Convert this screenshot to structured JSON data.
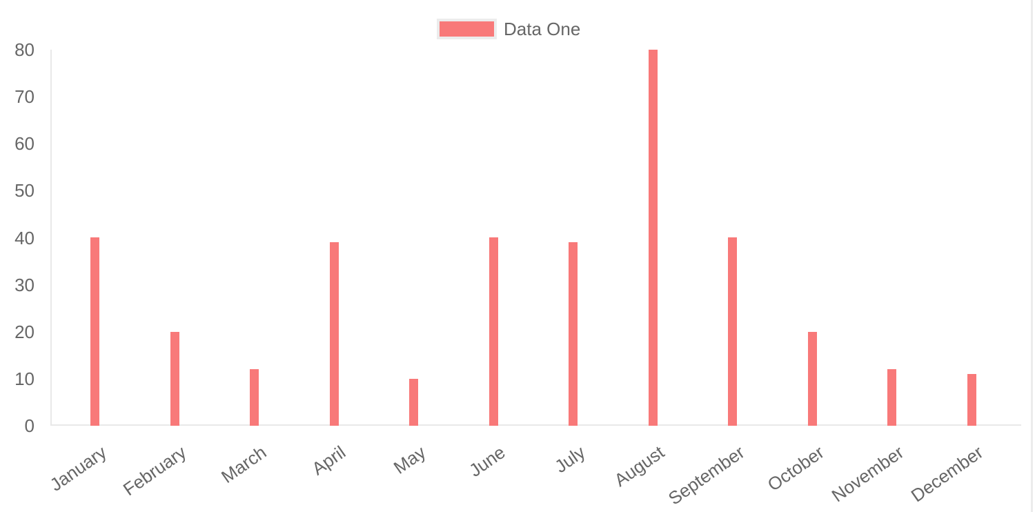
{
  "chart_data": {
    "type": "bar",
    "title": "",
    "categories": [
      "January",
      "February",
      "March",
      "April",
      "May",
      "June",
      "July",
      "August",
      "September",
      "October",
      "November",
      "December"
    ],
    "series": [
      {
        "name": "Data One",
        "color": "#f87979",
        "values": [
          40,
          20,
          12,
          39,
          10,
          40,
          39,
          80,
          40,
          20,
          12,
          11
        ]
      }
    ],
    "ylim": [
      0,
      80
    ],
    "yticks": [
      0,
      10,
      20,
      30,
      40,
      50,
      60,
      70,
      80
    ],
    "grid": false,
    "legend_position": "top",
    "x_label_rotation_deg": -35,
    "axis_color": "#e8e8e8",
    "tick_label_color": "#666666"
  }
}
